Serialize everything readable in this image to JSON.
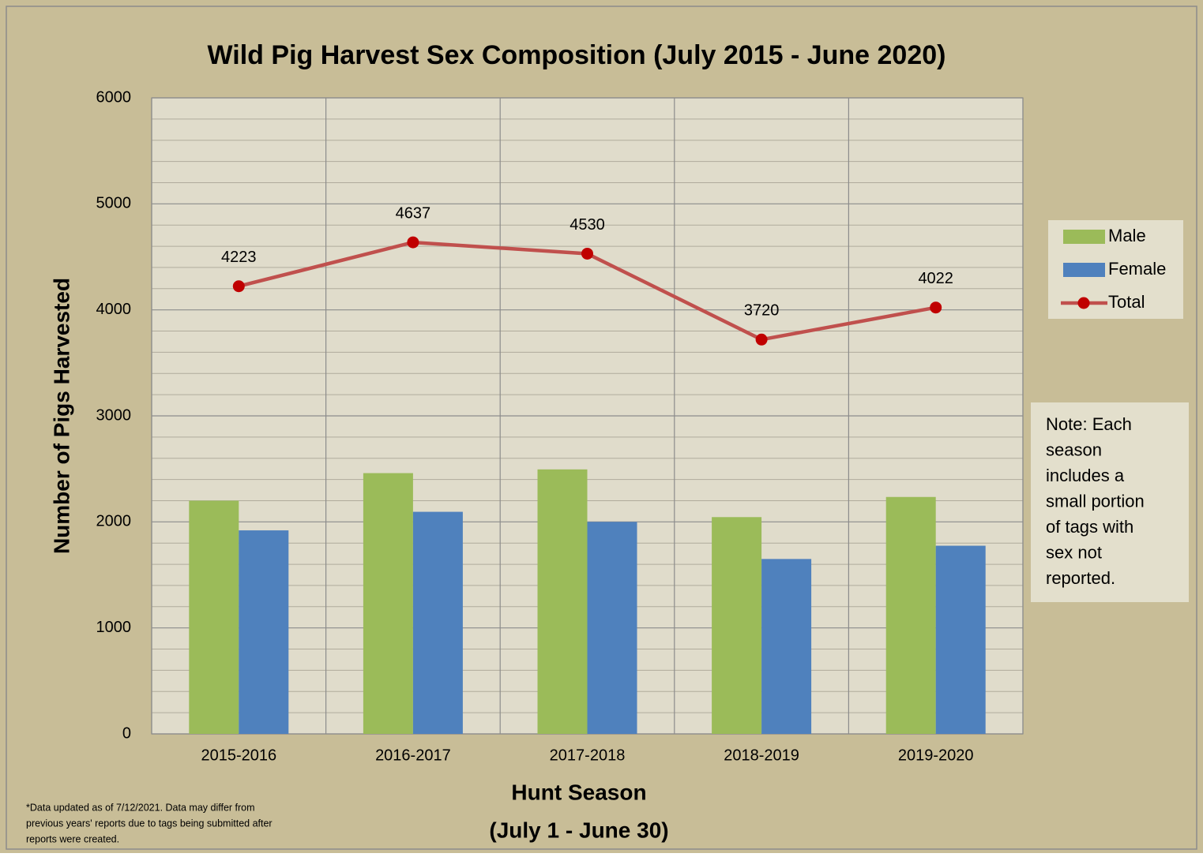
{
  "chart_data": {
    "type": "bar-line",
    "title": "Wild Pig Harvest Sex Composition (July 2015 - June 2020)",
    "y_axis_label": "Number of Pigs Harvested",
    "x_axis_label": [
      "Hunt Season",
      "(July 1 - June 30)"
    ],
    "categories": [
      "2015-2016",
      "2016-2017",
      "2017-2018",
      "2018-2019",
      "2019-2020"
    ],
    "series": [
      {
        "name": "Male",
        "type": "bar",
        "color": "#9bbb59",
        "values": [
          2200,
          2460,
          2495,
          2045,
          2235
        ]
      },
      {
        "name": "Female",
        "type": "bar",
        "color": "#4f81bd",
        "values": [
          1920,
          2095,
          2000,
          1650,
          1775
        ]
      },
      {
        "name": "Total",
        "type": "line",
        "color": "#c0504d",
        "marker_color": "#c00000",
        "values": [
          4223,
          4637,
          4530,
          3720,
          4022
        ]
      }
    ],
    "ylim": [
      0,
      6000
    ],
    "yticks": [
      0,
      1000,
      2000,
      3000,
      4000,
      5000,
      6000
    ],
    "grid": true,
    "minor_grid_divisions": 5,
    "legend": "right",
    "note": [
      "Note: Each",
      "season",
      "includes a",
      "small portion",
      "of tags with",
      "sex not",
      "reported."
    ],
    "footnote": [
      "*Data updated as of 7/12/2021. Data may differ from",
      "previous years' reports due to tags being submitted after",
      "reports were created."
    ]
  }
}
